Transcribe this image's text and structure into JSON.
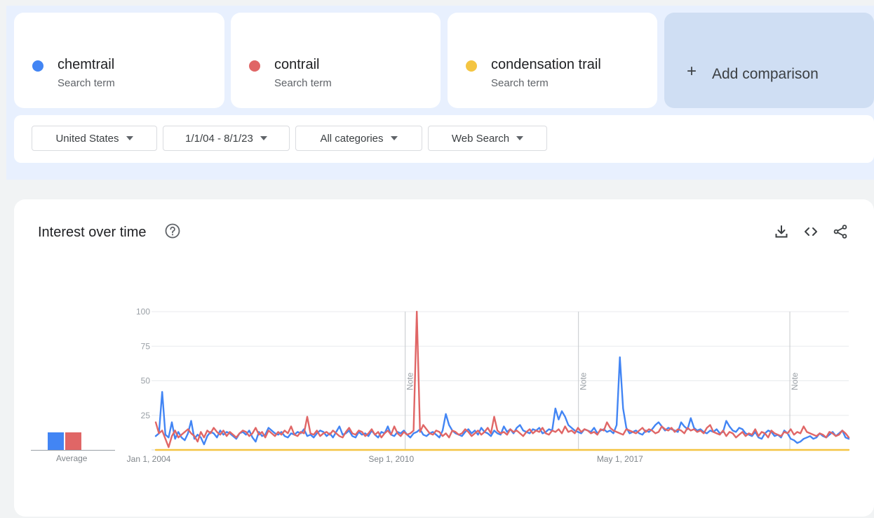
{
  "terms": [
    {
      "name": "chemtrail",
      "sub": "Search term",
      "color": "#4285f4"
    },
    {
      "name": "contrail",
      "sub": "Search term",
      "color": "#e06666"
    },
    {
      "name": "condensation trail",
      "sub": "Search term",
      "color": "#f4c542"
    }
  ],
  "add_comparison": {
    "plus": "+",
    "label": "Add comparison"
  },
  "filters": {
    "region": "United States",
    "date_range": "1/1/04 - 8/1/23",
    "category": "All categories",
    "search_type": "Web Search"
  },
  "section": {
    "title": "Interest over time"
  },
  "icons": {
    "help": "help-circle-icon",
    "download": "download-icon",
    "embed": "code-embed-icon",
    "share": "share-icon"
  },
  "average": {
    "label": "Average",
    "values": [
      13,
      13,
      0
    ]
  },
  "chart_data": {
    "type": "line",
    "x_tick_labels": [
      "Jan 1, 2004",
      "Sep 1, 2010",
      "May 1, 2017"
    ],
    "y_ticks": [
      25,
      50,
      75,
      100
    ],
    "ylim": [
      0,
      100
    ],
    "notes": [
      "Note",
      "Note",
      "Note"
    ],
    "grid": true,
    "series": [
      {
        "name": "chemtrail",
        "color": "#4285f4",
        "values": [
          10,
          12,
          42,
          11,
          9,
          20,
          8,
          13,
          9,
          7,
          12,
          21,
          8,
          11,
          9,
          4,
          10,
          13,
          12,
          9,
          14,
          11,
          13,
          12,
          10,
          8,
          12,
          13,
          11,
          14,
          9,
          6,
          13,
          10,
          11,
          16,
          14,
          12,
          11,
          13,
          10,
          9,
          12,
          11,
          13,
          12,
          15,
          10,
          11,
          9,
          12,
          14,
          13,
          10,
          12,
          9,
          13,
          17,
          11,
          12,
          14,
          10,
          9,
          13,
          11,
          12,
          10,
          14,
          11,
          9,
          13,
          12,
          17,
          11,
          10,
          13,
          12,
          14,
          11,
          9,
          12,
          13,
          15,
          11,
          10,
          12,
          13,
          11,
          9,
          14,
          26,
          18,
          14,
          12,
          11,
          10,
          13,
          15,
          12,
          14,
          11,
          16,
          13,
          12,
          10,
          14,
          12,
          11,
          17,
          13,
          15,
          12,
          16,
          18,
          14,
          13,
          12,
          15,
          14,
          16,
          12,
          13,
          15,
          14,
          30,
          22,
          28,
          24,
          18,
          16,
          14,
          13,
          12,
          15,
          14,
          13,
          16,
          12,
          14,
          15,
          13,
          14,
          12,
          18,
          67,
          30,
          16,
          12,
          13,
          14,
          12,
          11,
          14,
          13,
          15,
          18,
          20,
          17,
          14,
          16,
          15,
          14,
          13,
          20,
          17,
          15,
          23,
          16,
          14,
          15,
          13,
          12,
          14,
          13,
          15,
          12,
          13,
          21,
          17,
          14,
          13,
          16,
          15,
          12,
          11,
          10,
          13,
          9,
          8,
          12,
          14,
          13,
          10,
          11,
          9,
          14,
          12,
          8,
          7,
          5,
          6,
          8,
          9,
          10,
          8,
          9,
          12,
          10,
          9,
          11,
          13,
          10,
          12,
          14,
          9,
          8
        ]
      },
      {
        "name": "contrail",
        "color": "#e06666",
        "values": [
          20,
          12,
          14,
          8,
          2,
          10,
          14,
          9,
          11,
          13,
          15,
          12,
          10,
          6,
          13,
          9,
          14,
          12,
          16,
          13,
          11,
          14,
          10,
          13,
          11,
          9,
          12,
          14,
          13,
          10,
          12,
          16,
          11,
          13,
          9,
          14,
          12,
          10,
          13,
          11,
          14,
          12,
          17,
          11,
          10,
          13,
          12,
          24,
          12,
          11,
          14,
          10,
          12,
          13,
          11,
          14,
          12,
          10,
          9,
          13,
          16,
          12,
          11,
          14,
          13,
          10,
          12,
          15,
          11,
          13,
          9,
          12,
          14,
          11,
          17,
          12,
          10,
          13,
          11,
          12,
          14,
          100,
          13,
          18,
          15,
          12,
          11,
          14,
          13,
          10,
          12,
          9,
          14,
          13,
          11,
          12,
          15,
          13,
          10,
          12,
          14,
          11,
          13,
          16,
          12,
          24,
          14,
          12,
          13,
          11,
          15,
          13,
          14,
          12,
          10,
          13,
          15,
          12,
          14,
          13,
          16,
          12,
          11,
          14,
          13,
          15,
          12,
          17,
          13,
          14,
          12,
          16,
          13,
          15,
          14,
          12,
          13,
          11,
          15,
          14,
          20,
          16,
          14,
          13,
          12,
          11,
          15,
          14,
          13,
          12,
          14,
          16,
          13,
          15,
          14,
          12,
          13,
          17,
          15,
          14,
          16,
          13,
          15,
          14,
          12,
          16,
          14,
          15,
          13,
          14,
          12,
          16,
          18,
          13,
          12,
          11,
          14,
          10,
          13,
          12,
          9,
          11,
          13,
          10,
          12,
          11,
          15,
          10,
          13,
          12,
          9,
          14,
          12,
          11,
          10,
          13,
          12,
          15,
          11,
          13,
          12,
          17,
          13,
          12,
          11,
          10,
          12,
          11,
          9,
          13,
          12,
          10,
          11,
          14,
          12,
          9
        ]
      },
      {
        "name": "condensation trail",
        "color": "#f4c542",
        "values": [
          0,
          0,
          0,
          0,
          0,
          0,
          0,
          0,
          0,
          0,
          0,
          0,
          0,
          0,
          0,
          0,
          0,
          0,
          0,
          0
        ]
      }
    ]
  }
}
